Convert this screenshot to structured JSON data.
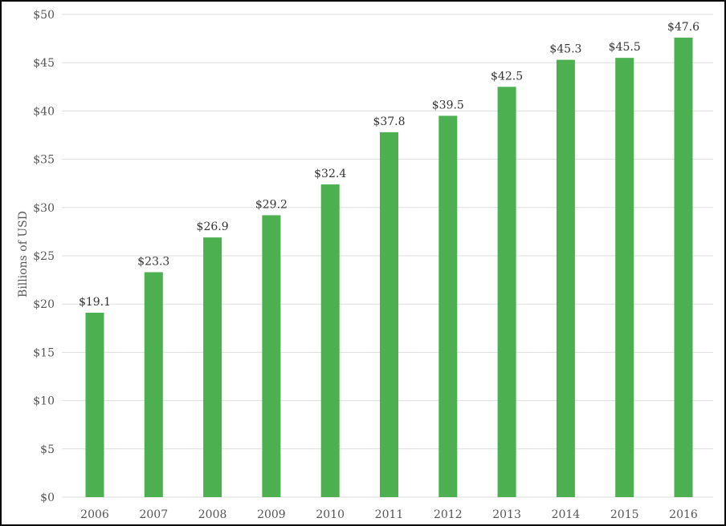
{
  "chart_data": {
    "type": "bar",
    "categories": [
      "2006",
      "2007",
      "2008",
      "2009",
      "2010",
      "2011",
      "2012",
      "2013",
      "2014",
      "2015",
      "2016"
    ],
    "values": [
      19.1,
      23.3,
      26.9,
      29.2,
      32.4,
      37.8,
      39.5,
      42.5,
      45.3,
      45.5,
      47.6
    ],
    "data_labels": [
      "$19.1",
      "$23.3",
      "$26.9",
      "$29.2",
      "$32.4",
      "$37.8",
      "$39.5",
      "$42.5",
      "$45.3",
      "$45.5",
      "$47.6"
    ],
    "title": "",
    "xlabel": "",
    "ylabel": "Billions of USD",
    "ylim": [
      0,
      50
    ],
    "yticks": [
      0,
      5,
      10,
      15,
      20,
      25,
      30,
      35,
      40,
      45,
      50
    ],
    "ytick_labels": [
      "$0",
      "$5",
      "$10",
      "$15",
      "$20",
      "$25",
      "$30",
      "$35",
      "$40",
      "$45",
      "$50"
    ],
    "grid": true,
    "bar_color": "#4caf50",
    "grid_color": "#dddddd"
  }
}
